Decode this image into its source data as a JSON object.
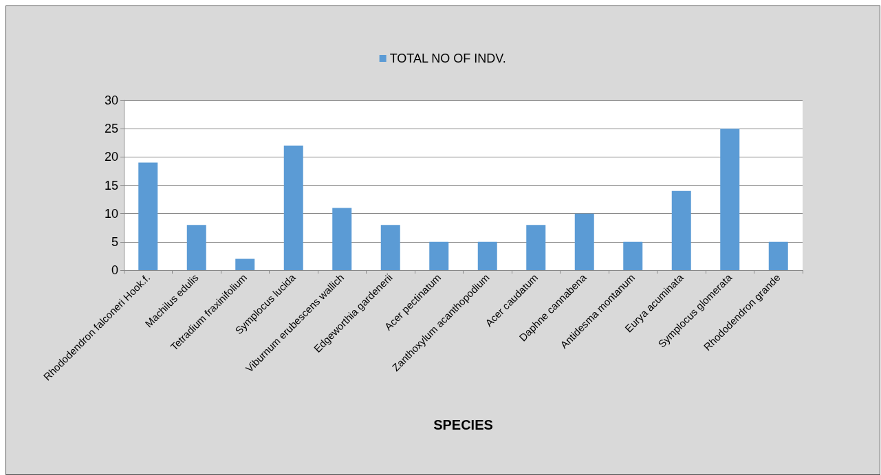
{
  "chart_data": {
    "type": "bar",
    "xlabel": "SPECIES",
    "categories": [
      "Rhododendron falconeri Hook.f.",
      "Machilus edulis",
      "Tetradium fraxinifolium",
      "Symplocus lucida",
      "Viburnum erubescens wallich",
      "Edgeworthia gardenerii",
      "Acer pectinatum",
      "Zanthoxylum acanthopodium",
      "Acer caudatum",
      "Daphne cannabena",
      "Antidesma montanum",
      "Eurya acuminata",
      "Symplocus glomerata",
      "Rhododendron grande"
    ],
    "series": [
      {
        "name": "TOTAL NO OF INDV.",
        "color": "#5b9bd5",
        "values": [
          19,
          8,
          2,
          22,
          11,
          8,
          5,
          5,
          8,
          10,
          5,
          14,
          25,
          5
        ]
      }
    ],
    "ylim": [
      0,
      30
    ],
    "yticks": [
      0,
      5,
      10,
      15,
      20,
      25,
      30
    ],
    "grid": "y",
    "legend": "top"
  }
}
